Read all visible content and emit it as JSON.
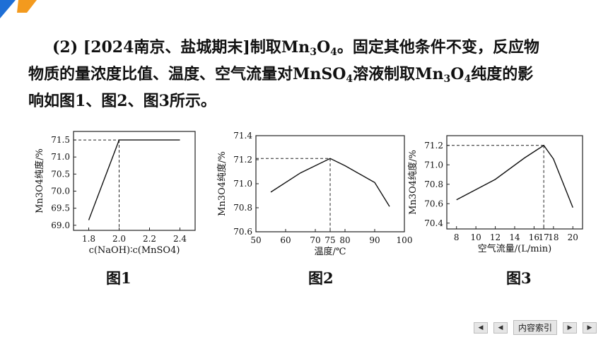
{
  "accent_colors": {
    "corner_blue": "#1e6fd6",
    "corner_orange": "#f39a1e"
  },
  "question": {
    "prefix": "(2) [2024南京、盐城期末]制取Mn",
    "sub1": "3",
    "mid1": "O",
    "sub2": "4",
    "mid2": "。固定其他条件不变，反应物",
    "line2a": "物质的量浓度比值、温度、空气流量对MnSO",
    "sub3": "4",
    "line2b": "溶液制取Mn",
    "sub4": "3",
    "mid3": "O",
    "sub5": "4",
    "line2c": "纯度的影",
    "line3": "响如图1、图2、图3所示。"
  },
  "captions": [
    "图1",
    "图2",
    "图3"
  ],
  "nav": {
    "first_icon": "double-left-icon",
    "prev_icon": "left-icon",
    "label": "内容索引",
    "next_icon": "right-icon",
    "last_icon": "double-right-icon"
  },
  "chart_data": [
    {
      "type": "line",
      "ylabel": "Mn3O4纯度/%",
      "xlabel": "c(NaOH)∶c(MnSO4)",
      "x": [
        1.8,
        2.0,
        2.4
      ],
      "y": [
        69.15,
        71.5,
        71.5
      ],
      "xlim": [
        1.7,
        2.5
      ],
      "ylim": [
        68.85,
        71.75
      ],
      "xticks": [
        1.8,
        2.0,
        2.2,
        2.4
      ],
      "xtick_labels": [
        "1.8",
        "2.0",
        "2.2",
        "2.4"
      ],
      "yticks": [
        69.0,
        69.5,
        70.0,
        70.5,
        71.0,
        71.5
      ],
      "ytick_labels": [
        "69.0",
        "69.5",
        "70.0",
        "70.5",
        "71.0",
        "71.5"
      ],
      "guide": {
        "x": 2.0,
        "y": 71.5
      },
      "grid": false
    },
    {
      "type": "line",
      "ylabel": "Mn3O4纯度/%",
      "xlabel": "温度/℃",
      "x": [
        55,
        65,
        75,
        80,
        90,
        95
      ],
      "y": [
        70.93,
        71.09,
        71.21,
        71.15,
        71.01,
        70.81
      ],
      "xlim": [
        50,
        100
      ],
      "ylim": [
        70.6,
        71.4
      ],
      "xticks": [
        50,
        60,
        70,
        75,
        80,
        90,
        100
      ],
      "xtick_labels": [
        "50",
        "60",
        "70",
        "75",
        "80",
        "90",
        "100"
      ],
      "yticks": [
        70.6,
        70.8,
        71.0,
        71.2,
        71.4
      ],
      "ytick_labels": [
        "70.6",
        "70.8",
        "71.0",
        "71.2",
        "71.4"
      ],
      "guide": {
        "x": 75,
        "y": 71.21
      },
      "grid": false
    },
    {
      "type": "line",
      "ylabel": "Mn3O4纯度/%",
      "xlabel": "空气流量/(L/min)",
      "x": [
        8,
        12,
        15,
        17,
        18,
        20
      ],
      "y": [
        70.64,
        70.85,
        71.07,
        71.2,
        71.06,
        70.56
      ],
      "xlim": [
        7,
        21
      ],
      "ylim": [
        70.34,
        71.3
      ],
      "xticks": [
        8,
        10,
        12,
        14,
        16,
        17,
        18,
        20
      ],
      "xtick_labels": [
        "8",
        "10",
        "12",
        "14",
        "16",
        "17",
        "18",
        "20"
      ],
      "yticks": [
        70.4,
        70.6,
        70.8,
        71.0,
        71.2
      ],
      "ytick_labels": [
        "70.4",
        "70.6",
        "70.8",
        "71.0",
        "71.2"
      ],
      "guide": {
        "x": 17,
        "y": 71.2
      },
      "grid": false
    }
  ]
}
